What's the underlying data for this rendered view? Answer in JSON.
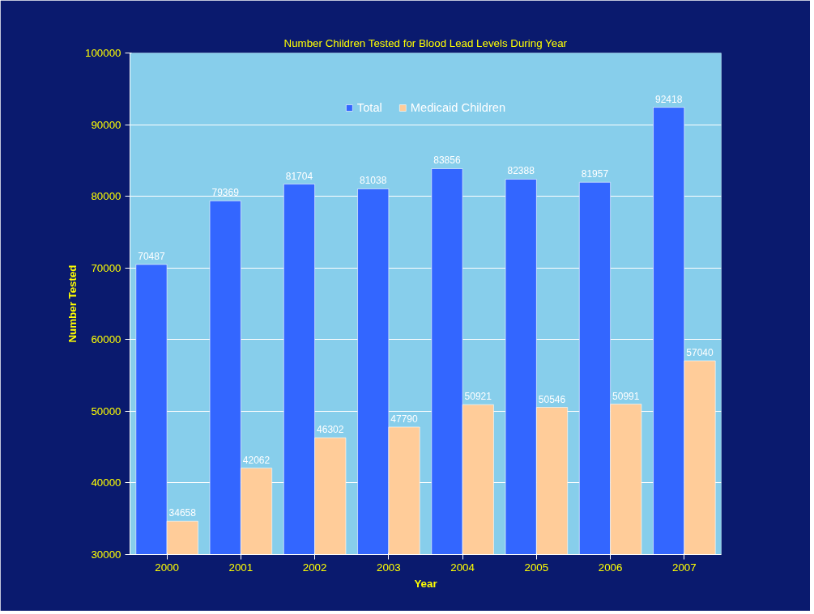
{
  "chart_data": {
    "type": "bar",
    "title": "Number Children Tested for Blood Lead Levels During Year",
    "xlabel": "Year",
    "ylabel": "Number Tested",
    "categories": [
      "2000",
      "2001",
      "2002",
      "2003",
      "2004",
      "2005",
      "2006",
      "2007"
    ],
    "series": [
      {
        "name": "Total",
        "color": "#3366ff",
        "values": [
          70487,
          79369,
          81704,
          81038,
          83856,
          82388,
          81957,
          92418
        ]
      },
      {
        "name": "Medicaid Children",
        "color": "#ffcc99",
        "values": [
          34658,
          42062,
          46302,
          47790,
          50921,
          50546,
          50991,
          57040
        ]
      }
    ],
    "ylim": [
      30000,
      100000
    ],
    "yticks": [
      30000,
      40000,
      50000,
      60000,
      70000,
      80000,
      90000,
      100000
    ],
    "grid": "y",
    "legend": "top",
    "data_labels": true
  }
}
